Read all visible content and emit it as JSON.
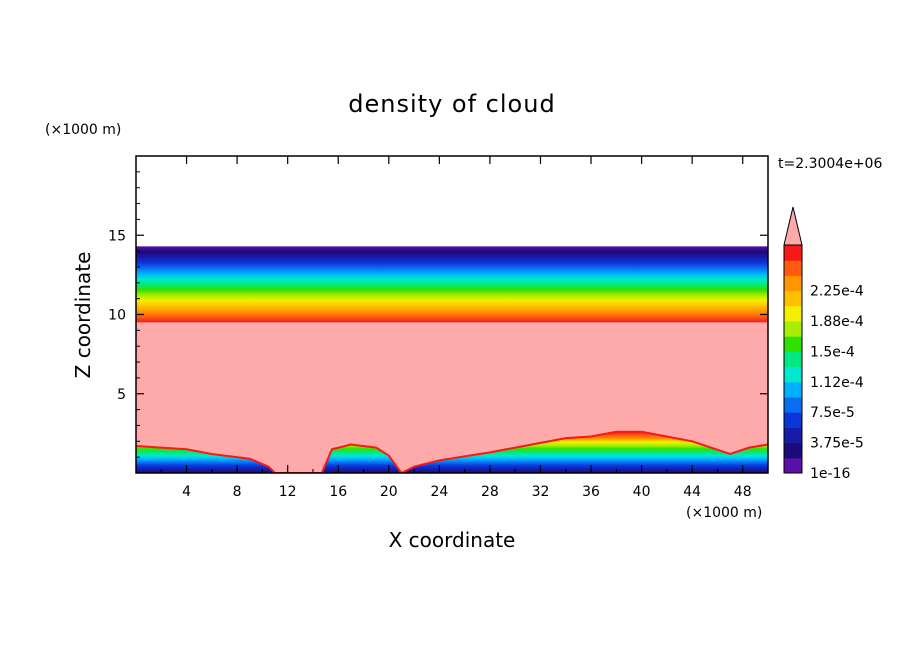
{
  "chart_data": {
    "type": "heatmap",
    "title": "density of cloud",
    "xlabel": "X coordinate",
    "ylabel": "Z coordinate",
    "x_unit": "(×1000 m)",
    "y_unit": "(×1000 m)",
    "time_label": "t=2.3004e+06",
    "xlim": [
      0,
      50
    ],
    "ylim": [
      0,
      20
    ],
    "x_ticks": [
      "4",
      "8",
      "12",
      "16",
      "20",
      "24",
      "28",
      "32",
      "36",
      "40",
      "44",
      "48"
    ],
    "y_ticks": [
      "5",
      "10",
      "15"
    ],
    "colorbar": {
      "labels": [
        "1e-16",
        "3.75e-5",
        "7.5e-5",
        "1.12e-4",
        "1.5e-4",
        "1.88e-4",
        "2.25e-4"
      ],
      "colors": [
        "#5a10a6",
        "#1a0a7a",
        "#1a1aa8",
        "#0a35d8",
        "#0a6cf0",
        "#00b0ff",
        "#00e8d0",
        "#00e880",
        "#30e000",
        "#a8ee00",
        "#f4ee00",
        "#ffc000",
        "#ff9600",
        "#ff5a10",
        "#f81818",
        "#ffaaaa"
      ],
      "over_color": "#ffaaaa"
    },
    "layers": {
      "top_band_z": [
        9.5,
        14.3
      ],
      "saturated_region_z": [
        0,
        9.5
      ],
      "saturated_color": "#ffaaaa",
      "above_band_color": "#ffffff"
    },
    "surface_profile": {
      "x": [
        0,
        4,
        6,
        9,
        10.5,
        11,
        14.7,
        15.5,
        17,
        19,
        20,
        21,
        22,
        24,
        28,
        32,
        34,
        36,
        38,
        40,
        44,
        47,
        48.5,
        50
      ],
      "z": [
        1.7,
        1.5,
        1.2,
        0.9,
        0.4,
        0,
        0,
        1.5,
        1.8,
        1.6,
        1.1,
        0,
        0.4,
        0.8,
        1.3,
        1.9,
        2.2,
        2.3,
        2.6,
        2.6,
        2.0,
        1.2,
        1.6,
        1.8
      ]
    }
  }
}
